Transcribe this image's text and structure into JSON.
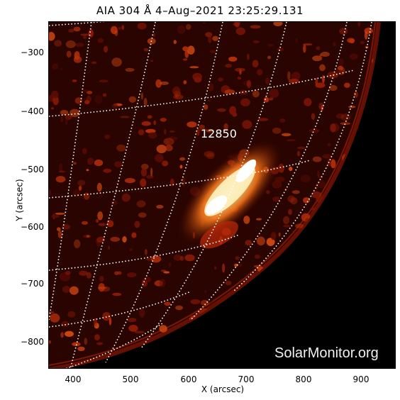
{
  "title": "AIA 304 Å  4–Aug–2021 23:25:29.131",
  "xlabel": "X (arcsec)",
  "ylabel": "Y (arcsec)",
  "xticks": [
    "400",
    "500",
    "600",
    "700",
    "800",
    "900"
  ],
  "yticks": [
    "−300",
    "−400",
    "−500",
    "−600",
    "−700",
    "−800"
  ],
  "region_label": "12850",
  "watermark": "SolarMonitor.org",
  "colors": {
    "glow": "#ffd080",
    "disk": "#3a0600",
    "grid": "#ffffff"
  }
}
